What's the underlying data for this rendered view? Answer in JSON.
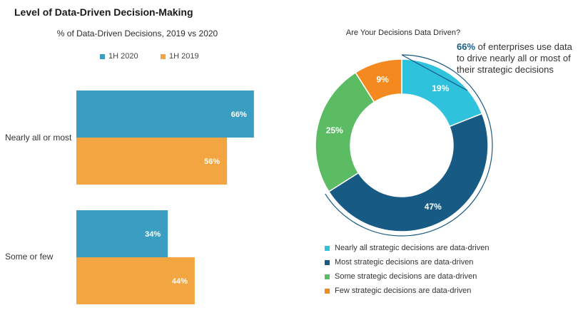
{
  "page": {
    "title": "Level of Data-Driven Decision-Making"
  },
  "colors": {
    "h1_2020": "#3a9dc2",
    "h1_2019": "#f2a540",
    "nearly_all": "#2fc2dc",
    "most": "#175a83",
    "some": "#5cbc63",
    "few": "#f3891f"
  },
  "chart_data": [
    {
      "type": "bar",
      "orientation": "horizontal",
      "title": "% of Data-Driven Decisions, 2019 vs 2020",
      "categories": [
        "Nearly all or most",
        "Some or few"
      ],
      "series": [
        {
          "name": "1H 2020",
          "values": [
            66,
            34
          ],
          "labels": [
            "66%",
            "34%"
          ]
        },
        {
          "name": "1H 2019",
          "values": [
            56,
            44
          ],
          "labels": [
            "56%",
            "44%"
          ]
        }
      ],
      "xlim": [
        0,
        100
      ],
      "legend_position": "top",
      "grid": false
    },
    {
      "type": "pie",
      "variant": "donut",
      "title": "Are Your Decisions Data Driven?",
      "slices": [
        {
          "name": "Nearly all strategic decisions are data-driven",
          "value": 19,
          "label": "19%"
        },
        {
          "name": "Most strategic decisions are data-driven",
          "value": 47,
          "label": "47%"
        },
        {
          "name": "Some strategic decisions are data-driven",
          "value": 25,
          "label": "25%"
        },
        {
          "name": "Few strategic decisions are data-driven",
          "value": 9,
          "label": "9%"
        }
      ],
      "legend_position": "bottom",
      "annotation": {
        "highlight": "66%",
        "text": "of enterprises use data to drive nearly all or most of their strategic decisions"
      }
    }
  ]
}
